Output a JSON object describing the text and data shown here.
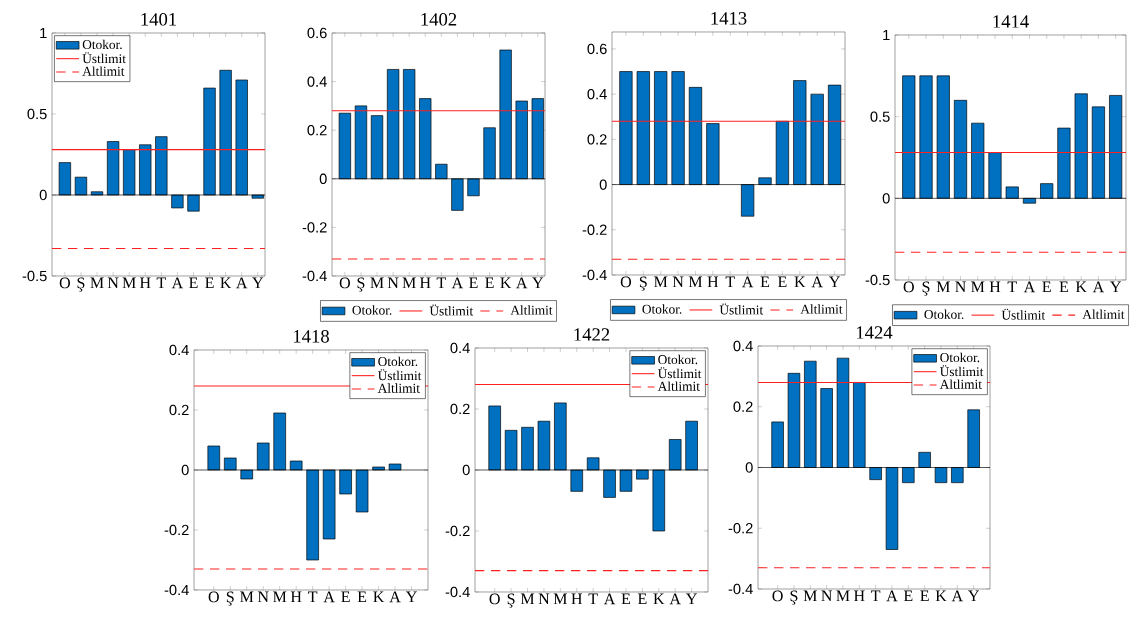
{
  "chart_data": [
    {
      "type": "bar",
      "title": "1401",
      "categories": [
        "O",
        "Ş",
        "M",
        "N",
        "M",
        "H",
        "T",
        "A",
        "E",
        "E",
        "K",
        "A",
        "Y"
      ],
      "series": [
        {
          "name": "Otokor.",
          "color": "#0070c0",
          "values": [
            0.2,
            0.11,
            0.02,
            0.33,
            0.28,
            0.31,
            0.36,
            -0.08,
            -0.1,
            0.66,
            0.77,
            0.71,
            -0.02
          ]
        }
      ],
      "ylim": [
        -0.5,
        1
      ],
      "yticks": [
        -0.5,
        0,
        0.5,
        1
      ],
      "legend": "top left",
      "ref_lines": [
        {
          "axis": "y",
          "value": 0.28,
          "label": "Üstlimit",
          "color": "#ff2020",
          "line_style": "solid"
        },
        {
          "axis": "y",
          "value": -0.33,
          "label": "Altlimit",
          "color": "#ff2020",
          "line_style": "dashed"
        }
      ]
    },
    {
      "type": "bar",
      "title": "1402",
      "categories": [
        "O",
        "Ş",
        "M",
        "N",
        "M",
        "H",
        "T",
        "A",
        "E",
        "E",
        "K",
        "A",
        "Y"
      ],
      "series": [
        {
          "name": "Otokor.",
          "color": "#0070c0",
          "values": [
            0.27,
            0.3,
            0.26,
            0.45,
            0.45,
            0.33,
            0.06,
            -0.13,
            -0.07,
            0.21,
            0.53,
            0.32,
            0.33
          ]
        }
      ],
      "ylim": [
        -0.4,
        0.6
      ],
      "yticks": [
        -0.4,
        -0.2,
        0,
        0.2,
        0.4,
        0.6
      ],
      "legend": "bottom",
      "ref_lines": [
        {
          "axis": "y",
          "value": 0.28,
          "label": "Üstlimit",
          "color": "#ff2020",
          "line_style": "solid"
        },
        {
          "axis": "y",
          "value": -0.33,
          "label": "Altlimit",
          "color": "#ff2020",
          "line_style": "dashed"
        }
      ]
    },
    {
      "type": "bar",
      "title": "1413",
      "categories": [
        "O",
        "Ş",
        "M",
        "N",
        "M",
        "H",
        "T",
        "A",
        "E",
        "E",
        "K",
        "A",
        "Y"
      ],
      "series": [
        {
          "name": "Otokor.",
          "color": "#0070c0",
          "values": [
            0.5,
            0.5,
            0.5,
            0.5,
            0.43,
            0.27,
            null,
            -0.14,
            0.03,
            0.28,
            0.46,
            0.4,
            0.44
          ]
        }
      ],
      "ylim": [
        -0.4,
        0.675
      ],
      "yticks": [
        -0.4,
        -0.2,
        0,
        0.2,
        0.4,
        0.6
      ],
      "legend": "bottom",
      "ref_lines": [
        {
          "axis": "y",
          "value": 0.28,
          "label": "Üstlimit",
          "color": "#ff2020",
          "line_style": "solid"
        },
        {
          "axis": "y",
          "value": -0.33,
          "label": "Altlimit",
          "color": "#ff2020",
          "line_style": "dashed"
        }
      ]
    },
    {
      "type": "bar",
      "title": "1414",
      "categories": [
        "O",
        "Ş",
        "M",
        "N",
        "M",
        "H",
        "T",
        "A",
        "E",
        "E",
        "K",
        "A",
        "Y"
      ],
      "series": [
        {
          "name": "Otokor.",
          "color": "#0070c0",
          "values": [
            0.75,
            0.75,
            0.75,
            0.6,
            0.46,
            0.28,
            0.07,
            -0.03,
            0.09,
            0.43,
            0.64,
            0.56,
            0.63
          ]
        }
      ],
      "ylim": [
        -0.5,
        1
      ],
      "yticks": [
        -0.5,
        0,
        0.5,
        1
      ],
      "legend": "bottom",
      "ref_lines": [
        {
          "axis": "y",
          "value": 0.28,
          "label": "Üstlimit",
          "color": "#ff2020",
          "line_style": "solid"
        },
        {
          "axis": "y",
          "value": -0.33,
          "label": "Altlimit",
          "color": "#ff2020",
          "line_style": "dashed"
        }
      ]
    },
    {
      "type": "bar",
      "title": "1418",
      "categories": [
        "O",
        "Ş",
        "M",
        "N",
        "M",
        "H",
        "T",
        "A",
        "E",
        "E",
        "K",
        "A",
        "Y"
      ],
      "series": [
        {
          "name": "Otokor.",
          "color": "#0070c0",
          "values": [
            0.08,
            0.04,
            -0.03,
            0.09,
            0.19,
            0.03,
            -0.3,
            -0.23,
            -0.08,
            -0.14,
            0.01,
            0.02,
            null
          ]
        }
      ],
      "ylim": [
        -0.4,
        0.4
      ],
      "yticks": [
        -0.4,
        -0.2,
        0,
        0.2,
        0.4
      ],
      "legend": "top right",
      "ref_lines": [
        {
          "axis": "y",
          "value": 0.28,
          "label": "Üstlimit",
          "color": "#ff2020",
          "line_style": "solid"
        },
        {
          "axis": "y",
          "value": -0.33,
          "label": "Altlimit",
          "color": "#ff2020",
          "line_style": "dashed"
        }
      ]
    },
    {
      "type": "bar",
      "title": "1422",
      "categories": [
        "O",
        "Ş",
        "M",
        "N",
        "M",
        "H",
        "T",
        "A",
        "E",
        "E",
        "K",
        "A",
        "Y"
      ],
      "series": [
        {
          "name": "Otokor.",
          "color": "#0070c0",
          "values": [
            0.21,
            0.13,
            0.14,
            0.16,
            0.22,
            -0.07,
            0.04,
            -0.09,
            -0.07,
            -0.03,
            -0.2,
            0.1,
            0.16
          ]
        }
      ],
      "ylim": [
        -0.4,
        0.4
      ],
      "yticks": [
        -0.4,
        -0.2,
        0,
        0.2,
        0.4
      ],
      "legend": "top right",
      "ref_lines": [
        {
          "axis": "y",
          "value": 0.28,
          "label": "Üstlimit",
          "color": "#ff2020",
          "line_style": "solid"
        },
        {
          "axis": "y",
          "value": -0.33,
          "label": "Altlimit",
          "color": "#ff2020",
          "line_style": "dashed"
        }
      ]
    },
    {
      "type": "bar",
      "title": "1424",
      "categories": [
        "O",
        "Ş",
        "M",
        "N",
        "M",
        "H",
        "T",
        "A",
        "E",
        "E",
        "K",
        "A",
        "Y"
      ],
      "series": [
        {
          "name": "Otokor.",
          "color": "#0070c0",
          "values": [
            0.15,
            0.31,
            0.35,
            0.26,
            0.36,
            0.28,
            -0.04,
            -0.27,
            -0.05,
            0.05,
            -0.05,
            -0.05,
            0.19
          ]
        }
      ],
      "ylim": [
        -0.4,
        0.4
      ],
      "yticks": [
        -0.4,
        -0.2,
        0,
        0.2,
        0.4
      ],
      "legend": "top right",
      "ref_lines": [
        {
          "axis": "y",
          "value": 0.28,
          "label": "Üstlimit",
          "color": "#ff2020",
          "line_style": "solid"
        },
        {
          "axis": "y",
          "value": -0.33,
          "label": "Altlimit",
          "color": "#ff2020",
          "line_style": "dashed"
        }
      ]
    }
  ]
}
